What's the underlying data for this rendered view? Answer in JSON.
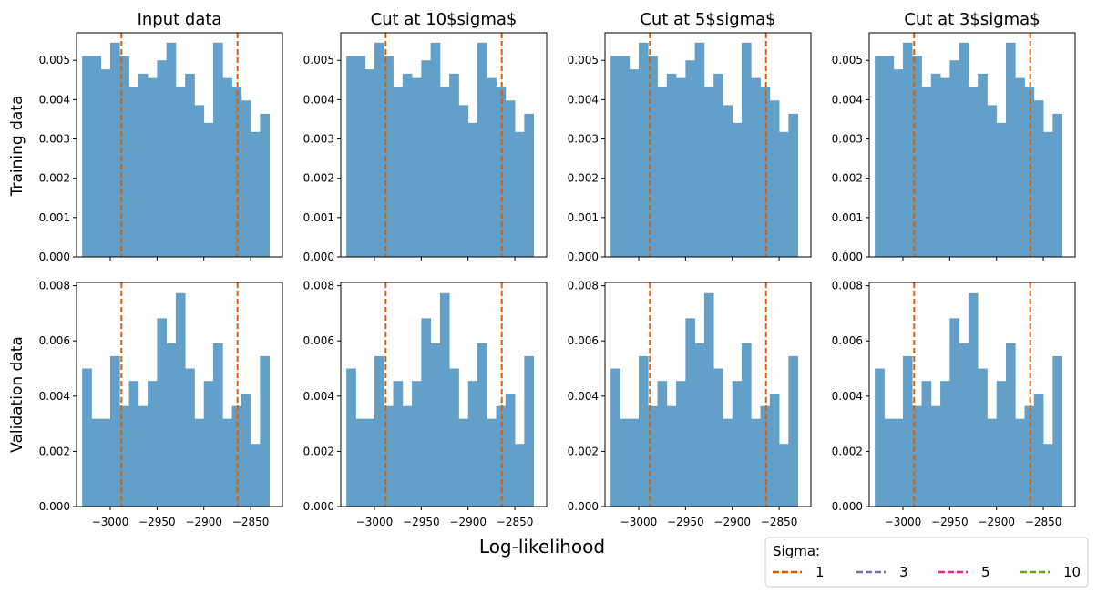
{
  "figure": {
    "xlabel": "Log-likelihood",
    "row_labels": [
      "Training data",
      "Validation data"
    ],
    "legend": {
      "title": "Sigma:",
      "entries": [
        {
          "label": "1",
          "color": "#d95f02"
        },
        {
          "label": "3",
          "color": "#7570b3"
        },
        {
          "label": "5",
          "color": "#e7298a"
        },
        {
          "label": "10",
          "color": "#66a61e"
        }
      ],
      "placement": "bottom-right"
    },
    "bar_color": "#62a0ca",
    "cut_color": "#d95f02"
  },
  "chart_data": [
    {
      "type": "bar",
      "title": "Input data",
      "row": "Training data",
      "categories": [
        -3025,
        -3015,
        -3005,
        -2995,
        -2985,
        -2975,
        -2965,
        -2955,
        -2945,
        -2935,
        -2925,
        -2915,
        -2905,
        -2895,
        -2885,
        -2875,
        -2865,
        -2855,
        -2845,
        -2835,
        -2825
      ],
      "values": [
        0.00511,
        0.00511,
        0.00477,
        0.00545,
        0.00511,
        0.00432,
        0.00466,
        0.00455,
        0.005,
        0.00545,
        0.00432,
        0.00466,
        0.00386,
        0.00341,
        0.00545,
        0.00455,
        0.00432,
        0.00398,
        0.00318,
        0.00364,
        0
      ],
      "bin_width": 10,
      "xlim": [
        -3036,
        -2816
      ],
      "ylim": [
        0,
        0.0057
      ],
      "yticks": [
        "0.000",
        "0.001",
        "0.002",
        "0.003",
        "0.004",
        "0.005"
      ],
      "cut_lines": [
        -2988,
        -2864
      ],
      "grid": false
    },
    {
      "type": "bar",
      "title": "Cut at 10$sigma$",
      "row": "Training data",
      "categories": [
        -3025,
        -3015,
        -3005,
        -2995,
        -2985,
        -2975,
        -2965,
        -2955,
        -2945,
        -2935,
        -2925,
        -2915,
        -2905,
        -2895,
        -2885,
        -2875,
        -2865,
        -2855,
        -2845,
        -2835,
        -2825
      ],
      "values": [
        0.00511,
        0.00511,
        0.00477,
        0.00545,
        0.00511,
        0.00432,
        0.00466,
        0.00455,
        0.005,
        0.00545,
        0.00432,
        0.00466,
        0.00386,
        0.00341,
        0.00545,
        0.00455,
        0.00432,
        0.00398,
        0.00318,
        0.00364,
        0
      ],
      "bin_width": 10,
      "xlim": [
        -3036,
        -2816
      ],
      "ylim": [
        0,
        0.0057
      ],
      "yticks": [
        "0.000",
        "0.001",
        "0.002",
        "0.003",
        "0.004",
        "0.005"
      ],
      "cut_lines": [
        -2988,
        -2864
      ],
      "grid": false
    },
    {
      "type": "bar",
      "title": "Cut at 5$sigma$",
      "row": "Training data",
      "categories": [
        -3025,
        -3015,
        -3005,
        -2995,
        -2985,
        -2975,
        -2965,
        -2955,
        -2945,
        -2935,
        -2925,
        -2915,
        -2905,
        -2895,
        -2885,
        -2875,
        -2865,
        -2855,
        -2845,
        -2835,
        -2825
      ],
      "values": [
        0.00511,
        0.00511,
        0.00477,
        0.00545,
        0.00511,
        0.00432,
        0.00466,
        0.00455,
        0.005,
        0.00545,
        0.00432,
        0.00466,
        0.00386,
        0.00341,
        0.00545,
        0.00455,
        0.00432,
        0.00398,
        0.00318,
        0.00364,
        0
      ],
      "bin_width": 10,
      "xlim": [
        -3036,
        -2816
      ],
      "ylim": [
        0,
        0.0057
      ],
      "yticks": [
        "0.000",
        "0.001",
        "0.002",
        "0.003",
        "0.004",
        "0.005"
      ],
      "cut_lines": [
        -2988,
        -2864
      ],
      "grid": false
    },
    {
      "type": "bar",
      "title": "Cut at 3$sigma$",
      "row": "Training data",
      "categories": [
        -3025,
        -3015,
        -3005,
        -2995,
        -2985,
        -2975,
        -2965,
        -2955,
        -2945,
        -2935,
        -2925,
        -2915,
        -2905,
        -2895,
        -2885,
        -2875,
        -2865,
        -2855,
        -2845,
        -2835,
        -2825
      ],
      "values": [
        0.00511,
        0.00511,
        0.00477,
        0.00545,
        0.00511,
        0.00432,
        0.00466,
        0.00455,
        0.005,
        0.00545,
        0.00432,
        0.00466,
        0.00386,
        0.00341,
        0.00545,
        0.00455,
        0.00432,
        0.00398,
        0.00318,
        0.00364,
        0
      ],
      "bin_width": 10,
      "xlim": [
        -3036,
        -2816
      ],
      "ylim": [
        0,
        0.0057
      ],
      "yticks": [
        "0.000",
        "0.001",
        "0.002",
        "0.003",
        "0.004",
        "0.005"
      ],
      "cut_lines": [
        -2988,
        -2864
      ],
      "grid": false
    },
    {
      "type": "bar",
      "title": "",
      "row": "Validation data",
      "categories": [
        -3025,
        -3015,
        -3005,
        -2995,
        -2985,
        -2975,
        -2965,
        -2955,
        -2945,
        -2935,
        -2925,
        -2915,
        -2905,
        -2895,
        -2885,
        -2875,
        -2865,
        -2855,
        -2845,
        -2835,
        -2825
      ],
      "values": [
        0.005,
        0.00318,
        0.00318,
        0.00545,
        0.00364,
        0.00455,
        0.00364,
        0.00455,
        0.00682,
        0.00591,
        0.00773,
        0.005,
        0.00318,
        0.00455,
        0.00591,
        0.00318,
        0.00364,
        0.00409,
        0.00227,
        0.00545,
        0
      ],
      "bin_width": 10,
      "xlim": [
        -3036,
        -2816
      ],
      "ylim": [
        0,
        0.00812
      ],
      "yticks": [
        "0.000",
        "0.002",
        "0.004",
        "0.006",
        "0.008"
      ],
      "xticks": [
        "−3000",
        "−2950",
        "−2900",
        "−2850"
      ],
      "xtick_values": [
        -3000,
        -2950,
        -2900,
        -2850
      ],
      "cut_lines": [
        -2988,
        -2864
      ],
      "grid": false
    },
    {
      "type": "bar",
      "title": "",
      "row": "Validation data",
      "categories": [
        -3025,
        -3015,
        -3005,
        -2995,
        -2985,
        -2975,
        -2965,
        -2955,
        -2945,
        -2935,
        -2925,
        -2915,
        -2905,
        -2895,
        -2885,
        -2875,
        -2865,
        -2855,
        -2845,
        -2835,
        -2825
      ],
      "values": [
        0.005,
        0.00318,
        0.00318,
        0.00545,
        0.00364,
        0.00455,
        0.00364,
        0.00455,
        0.00682,
        0.00591,
        0.00773,
        0.005,
        0.00318,
        0.00455,
        0.00591,
        0.00318,
        0.00364,
        0.00409,
        0.00227,
        0.00545,
        0
      ],
      "bin_width": 10,
      "xlim": [
        -3036,
        -2816
      ],
      "ylim": [
        0,
        0.00812
      ],
      "yticks": [
        "0.000",
        "0.002",
        "0.004",
        "0.006",
        "0.008"
      ],
      "xticks": [
        "−3000",
        "−2950",
        "−2900",
        "−2850"
      ],
      "xtick_values": [
        -3000,
        -2950,
        -2900,
        -2850
      ],
      "cut_lines": [
        -2988,
        -2864
      ],
      "grid": false
    },
    {
      "type": "bar",
      "title": "",
      "row": "Validation data",
      "categories": [
        -3025,
        -3015,
        -3005,
        -2995,
        -2985,
        -2975,
        -2965,
        -2955,
        -2945,
        -2935,
        -2925,
        -2915,
        -2905,
        -2895,
        -2885,
        -2875,
        -2865,
        -2855,
        -2845,
        -2835,
        -2825
      ],
      "values": [
        0.005,
        0.00318,
        0.00318,
        0.00545,
        0.00364,
        0.00455,
        0.00364,
        0.00455,
        0.00682,
        0.00591,
        0.00773,
        0.005,
        0.00318,
        0.00455,
        0.00591,
        0.00318,
        0.00364,
        0.00409,
        0.00227,
        0.00545,
        0
      ],
      "bin_width": 10,
      "xlim": [
        -3036,
        -2816
      ],
      "ylim": [
        0,
        0.00812
      ],
      "yticks": [
        "0.000",
        "0.002",
        "0.004",
        "0.006",
        "0.008"
      ],
      "xticks": [
        "−3000",
        "−2950",
        "−2900",
        "−2850"
      ],
      "xtick_values": [
        -3000,
        -2950,
        -2900,
        -2850
      ],
      "cut_lines": [
        -2988,
        -2864
      ],
      "grid": false
    },
    {
      "type": "bar",
      "title": "",
      "row": "Validation data",
      "categories": [
        -3025,
        -3015,
        -3005,
        -2995,
        -2985,
        -2975,
        -2965,
        -2955,
        -2945,
        -2935,
        -2925,
        -2915,
        -2905,
        -2895,
        -2885,
        -2875,
        -2865,
        -2855,
        -2845,
        -2835,
        -2825
      ],
      "values": [
        0.005,
        0.00318,
        0.00318,
        0.00545,
        0.00364,
        0.00455,
        0.00364,
        0.00455,
        0.00682,
        0.00591,
        0.00773,
        0.005,
        0.00318,
        0.00455,
        0.00591,
        0.00318,
        0.00364,
        0.00409,
        0.00227,
        0.00545,
        0
      ],
      "bin_width": 10,
      "xlim": [
        -3036,
        -2816
      ],
      "ylim": [
        0,
        0.00812
      ],
      "yticks": [
        "0.000",
        "0.002",
        "0.004",
        "0.006",
        "0.008"
      ],
      "xticks": [
        "−3000",
        "−2950",
        "−2900",
        "−2850"
      ],
      "xtick_values": [
        -3000,
        -2950,
        -2900,
        -2850
      ],
      "cut_lines": [
        -2988,
        -2864
      ],
      "grid": false
    }
  ]
}
